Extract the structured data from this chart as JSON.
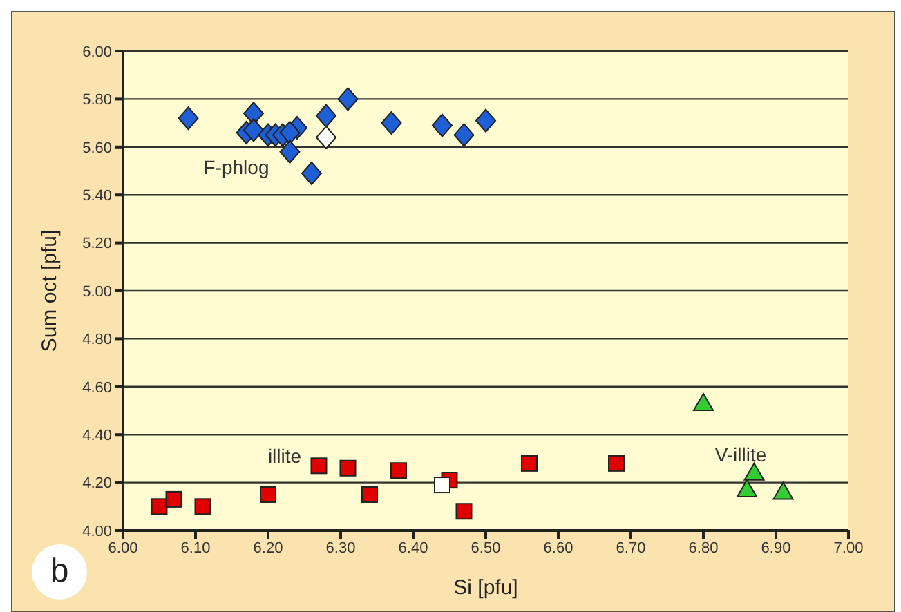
{
  "chart_data": {
    "type": "scatter",
    "xlabel": "Si [pfu]",
    "ylabel": "Sum oct [pfu]",
    "xlim": [
      6,
      7
    ],
    "ylim": [
      4,
      6
    ],
    "xticks": [
      {
        "value": 6,
        "label": "6.00"
      },
      {
        "value": 6.1,
        "label": "6.10"
      },
      {
        "value": 6.2,
        "label": "6.20"
      },
      {
        "value": 6.3,
        "label": "6.30"
      },
      {
        "value": 6.4,
        "label": "6.40"
      },
      {
        "value": 6.5,
        "label": "6.50"
      },
      {
        "value": 6.6,
        "label": "6.60"
      },
      {
        "value": 6.7,
        "label": "6.70"
      },
      {
        "value": 6.8,
        "label": "6.80"
      },
      {
        "value": 6.9,
        "label": "6.90"
      },
      {
        "value": 7,
        "label": "7.00"
      }
    ],
    "yticks": [
      {
        "value": 4,
        "label": "4.00"
      },
      {
        "value": 4.2,
        "label": "4.20"
      },
      {
        "value": 4.4,
        "label": "4.40"
      },
      {
        "value": 4.6,
        "label": "4.60"
      },
      {
        "value": 4.8,
        "label": "4.80"
      },
      {
        "value": 5,
        "label": "5.00"
      },
      {
        "value": 5.2,
        "label": "5.20"
      },
      {
        "value": 5.4,
        "label": "5.40"
      },
      {
        "value": 5.6,
        "label": "5.60"
      },
      {
        "value": 5.8,
        "label": "5.80"
      },
      {
        "value": 6,
        "label": "6.00"
      }
    ],
    "grid": "y",
    "legend": false,
    "series": [
      {
        "color": "#1f5fd6",
        "marker": "diamond",
        "x": [
          6.09,
          6.18,
          6.17,
          6.18,
          6.2,
          6.21,
          6.22,
          6.24,
          6.23,
          6.23,
          6.26,
          6.28,
          6.31,
          6.37,
          6.44,
          6.47,
          6.5
        ],
        "values": [
          5.72,
          5.74,
          5.66,
          5.67,
          5.65,
          5.65,
          5.65,
          5.68,
          5.66,
          5.58,
          5.49,
          5.73,
          5.8,
          5.7,
          5.69,
          5.65,
          5.71
        ]
      },
      {
        "color": "#e00000",
        "marker": "square",
        "x": [
          6.05,
          6.07,
          6.11,
          6.2,
          6.27,
          6.31,
          6.34,
          6.38,
          6.45,
          6.47,
          6.56,
          6.68
        ],
        "values": [
          4.1,
          4.13,
          4.1,
          4.15,
          4.27,
          4.26,
          4.15,
          4.25,
          4.21,
          4.08,
          4.28,
          4.28
        ]
      },
      {
        "color": "#33cc33",
        "marker": "triangle",
        "x": [
          6.8,
          6.87,
          6.86,
          6.91
        ],
        "values": [
          4.53,
          4.24,
          4.17,
          4.16
        ]
      },
      {
        "color": "#ffffff",
        "marker": "diamond",
        "x": [
          6.28
        ],
        "values": [
          5.64
        ]
      },
      {
        "color": "#ffffff",
        "marker": "square",
        "x": [
          6.44
        ],
        "values": [
          4.19
        ]
      }
    ],
    "annotations": [
      "F-phlog",
      "illite",
      "V-illite",
      "b"
    ]
  }
}
